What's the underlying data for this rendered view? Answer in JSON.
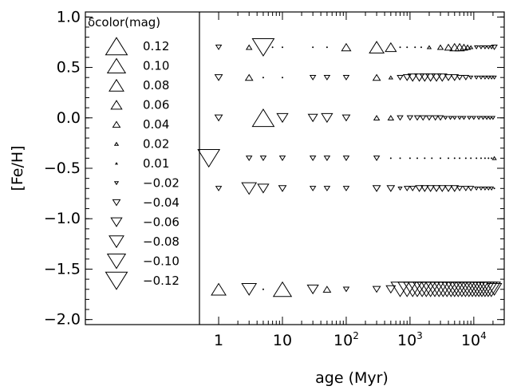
{
  "chart_data": {
    "type": "scatter",
    "xlabel": "age (Myr)",
    "ylabel": "[Fe/H]",
    "xscale": "log",
    "xlim": [
      0.5,
      30000
    ],
    "ylim": [
      -2.05,
      1.05
    ],
    "grid": false,
    "x_ticks": [
      {
        "value": 1,
        "base": "1",
        "exp": ""
      },
      {
        "value": 10,
        "base": "10",
        "exp": ""
      },
      {
        "value": 100,
        "base": "10",
        "exp": "2"
      },
      {
        "value": 1000,
        "base": "10",
        "exp": "3"
      },
      {
        "value": 10000,
        "base": "10",
        "exp": "4"
      }
    ],
    "y_ticks": [
      {
        "value": 1.0,
        "label": "1.0"
      },
      {
        "value": 0.5,
        "label": "0.5"
      },
      {
        "value": 0.0,
        "label": "0.0"
      },
      {
        "value": -0.5,
        "label": "−0.5"
      },
      {
        "value": -1.0,
        "label": "−1.0"
      },
      {
        "value": -1.5,
        "label": "−1.5"
      },
      {
        "value": -2.0,
        "label": "−2.0"
      }
    ],
    "legend": {
      "title": "δcolor(mag)",
      "placement": "left panel",
      "entries": [
        {
          "value": 0.12,
          "label": "0.12"
        },
        {
          "value": 0.1,
          "label": "0.10"
        },
        {
          "value": 0.08,
          "label": "0.08"
        },
        {
          "value": 0.06,
          "label": "0.06"
        },
        {
          "value": 0.04,
          "label": "0.04"
        },
        {
          "value": 0.02,
          "label": "0.02"
        },
        {
          "value": 0.01,
          "label": "0.01"
        },
        {
          "value": -0.02,
          "label": "−0.02"
        },
        {
          "value": -0.04,
          "label": "−0.04"
        },
        {
          "value": -0.06,
          "label": "−0.06"
        },
        {
          "value": -0.08,
          "label": "−0.08"
        },
        {
          "value": -0.1,
          "label": "−0.10"
        },
        {
          "value": -0.12,
          "label": "−0.12"
        }
      ]
    },
    "rows": [
      {
        "feh": 0.7,
        "points": [
          [
            1,
            -0.03
          ],
          [
            3,
            0.03
          ],
          [
            5,
            -0.12
          ],
          [
            7,
            0.01
          ],
          [
            10,
            0.01
          ],
          [
            30,
            0.01
          ],
          [
            50,
            0.01
          ],
          [
            100,
            0.05
          ],
          [
            300,
            0.08
          ],
          [
            500,
            0.06
          ],
          [
            700,
            0.01
          ],
          [
            900,
            0.01
          ],
          [
            1200,
            0.01
          ],
          [
            1500,
            0.01
          ],
          [
            2000,
            0.02
          ],
          [
            3000,
            0.03
          ],
          [
            4000,
            0.04
          ],
          [
            5000,
            0.05
          ],
          [
            6000,
            0.05
          ],
          [
            7000,
            0.04
          ],
          [
            8000,
            0.03
          ],
          [
            9000,
            0.02
          ],
          [
            11000,
            -0.02
          ],
          [
            13000,
            -0.02
          ],
          [
            15000,
            -0.02
          ],
          [
            17000,
            -0.02
          ],
          [
            19000,
            -0.02
          ],
          [
            21000,
            -0.03
          ]
        ]
      },
      {
        "feh": 0.4,
        "points": [
          [
            1,
            -0.04
          ],
          [
            3,
            0.04
          ],
          [
            5,
            0.01
          ],
          [
            10,
            0.01
          ],
          [
            30,
            -0.03
          ],
          [
            50,
            -0.03
          ],
          [
            100,
            -0.03
          ],
          [
            300,
            0.04
          ],
          [
            500,
            0.02
          ],
          [
            700,
            -0.03
          ],
          [
            900,
            -0.04
          ],
          [
            1100,
            -0.05
          ],
          [
            1400,
            -0.05
          ],
          [
            1700,
            -0.05
          ],
          [
            2100,
            -0.05
          ],
          [
            2600,
            -0.05
          ],
          [
            3200,
            -0.05
          ],
          [
            4000,
            -0.04
          ],
          [
            5000,
            -0.04
          ],
          [
            6000,
            -0.03
          ],
          [
            7500,
            -0.03
          ],
          [
            9000,
            -0.02
          ],
          [
            11000,
            -0.02
          ],
          [
            13000,
            -0.02
          ],
          [
            15000,
            -0.02
          ],
          [
            17000,
            -0.02
          ],
          [
            19000,
            -0.02
          ],
          [
            21000,
            -0.02
          ]
        ]
      },
      {
        "feh": 0.0,
        "points": [
          [
            1,
            -0.04
          ],
          [
            5,
            0.12
          ],
          [
            10,
            -0.06
          ],
          [
            30,
            -0.05
          ],
          [
            50,
            -0.06
          ],
          [
            100,
            -0.04
          ],
          [
            300,
            0.03
          ],
          [
            500,
            0.03
          ],
          [
            700,
            -0.03
          ],
          [
            1000,
            -0.03
          ],
          [
            1300,
            -0.03
          ],
          [
            1600,
            -0.03
          ],
          [
            2000,
            -0.03
          ],
          [
            2500,
            -0.03
          ],
          [
            3000,
            -0.03
          ],
          [
            3600,
            -0.02
          ],
          [
            4300,
            -0.02
          ],
          [
            5000,
            -0.02
          ],
          [
            6000,
            -0.02
          ],
          [
            7000,
            -0.02
          ],
          [
            8500,
            -0.02
          ],
          [
            10000,
            -0.02
          ],
          [
            12000,
            -0.02
          ],
          [
            14000,
            -0.02
          ],
          [
            16000,
            -0.02
          ],
          [
            18000,
            -0.02
          ],
          [
            20000,
            -0.02
          ]
        ]
      },
      {
        "feh": -0.4,
        "points": [
          [
            0.7,
            -0.12
          ],
          [
            3,
            -0.03
          ],
          [
            5,
            -0.03
          ],
          [
            10,
            -0.03
          ],
          [
            30,
            -0.03
          ],
          [
            50,
            -0.03
          ],
          [
            100,
            -0.03
          ],
          [
            300,
            -0.03
          ],
          [
            500,
            0.01
          ],
          [
            700,
            0.01
          ],
          [
            1000,
            0.01
          ],
          [
            1300,
            0.01
          ],
          [
            1700,
            0.01
          ],
          [
            2200,
            0.01
          ],
          [
            3000,
            0.01
          ],
          [
            4000,
            0.01
          ],
          [
            5000,
            0.01
          ],
          [
            6000,
            0.01
          ],
          [
            7500,
            0.01
          ],
          [
            9000,
            0.01
          ],
          [
            11000,
            0.01
          ],
          [
            13000,
            0.01
          ],
          [
            15000,
            0.01
          ],
          [
            17000,
            0.01
          ],
          [
            19000,
            0.01
          ],
          [
            21000,
            0.02
          ]
        ]
      },
      {
        "feh": -0.7,
        "points": [
          [
            1,
            -0.03
          ],
          [
            3,
            -0.08
          ],
          [
            5,
            -0.06
          ],
          [
            10,
            -0.04
          ],
          [
            30,
            -0.03
          ],
          [
            50,
            -0.03
          ],
          [
            100,
            -0.03
          ],
          [
            300,
            -0.04
          ],
          [
            500,
            -0.04
          ],
          [
            700,
            -0.02
          ],
          [
            900,
            -0.03
          ],
          [
            1100,
            -0.03
          ],
          [
            1400,
            -0.04
          ],
          [
            1700,
            -0.04
          ],
          [
            2100,
            -0.04
          ],
          [
            2600,
            -0.04
          ],
          [
            3200,
            -0.04
          ],
          [
            4000,
            -0.04
          ],
          [
            5000,
            -0.04
          ],
          [
            6000,
            -0.03
          ],
          [
            7500,
            -0.03
          ],
          [
            9000,
            -0.03
          ],
          [
            11000,
            -0.02
          ],
          [
            13000,
            -0.02
          ],
          [
            15000,
            -0.02
          ],
          [
            17000,
            -0.02
          ],
          [
            19000,
            -0.02
          ],
          [
            21000,
            0.01
          ]
        ]
      },
      {
        "feh": -1.7,
        "points": [
          [
            1,
            0.08
          ],
          [
            3,
            -0.08
          ],
          [
            5,
            0.01
          ],
          [
            10,
            0.1
          ],
          [
            30,
            -0.06
          ],
          [
            50,
            0.04
          ],
          [
            100,
            -0.03
          ],
          [
            300,
            -0.04
          ],
          [
            500,
            -0.05
          ],
          [
            700,
            -0.1
          ],
          [
            900,
            -0.1
          ],
          [
            1100,
            -0.1
          ],
          [
            1300,
            -0.1
          ],
          [
            1550,
            -0.1
          ],
          [
            1800,
            -0.1
          ],
          [
            2100,
            -0.1
          ],
          [
            2450,
            -0.1
          ],
          [
            2850,
            -0.1
          ],
          [
            3300,
            -0.1
          ],
          [
            3800,
            -0.1
          ],
          [
            4400,
            -0.1
          ],
          [
            5000,
            -0.1
          ],
          [
            5700,
            -0.1
          ],
          [
            6500,
            -0.1
          ],
          [
            7400,
            -0.1
          ],
          [
            8400,
            -0.1
          ],
          [
            9500,
            -0.1
          ],
          [
            10700,
            -0.1
          ],
          [
            12000,
            -0.1
          ],
          [
            13400,
            -0.1
          ],
          [
            15000,
            -0.1
          ],
          [
            16800,
            -0.1
          ],
          [
            18800,
            -0.1
          ],
          [
            21000,
            -0.08
          ]
        ]
      }
    ]
  }
}
